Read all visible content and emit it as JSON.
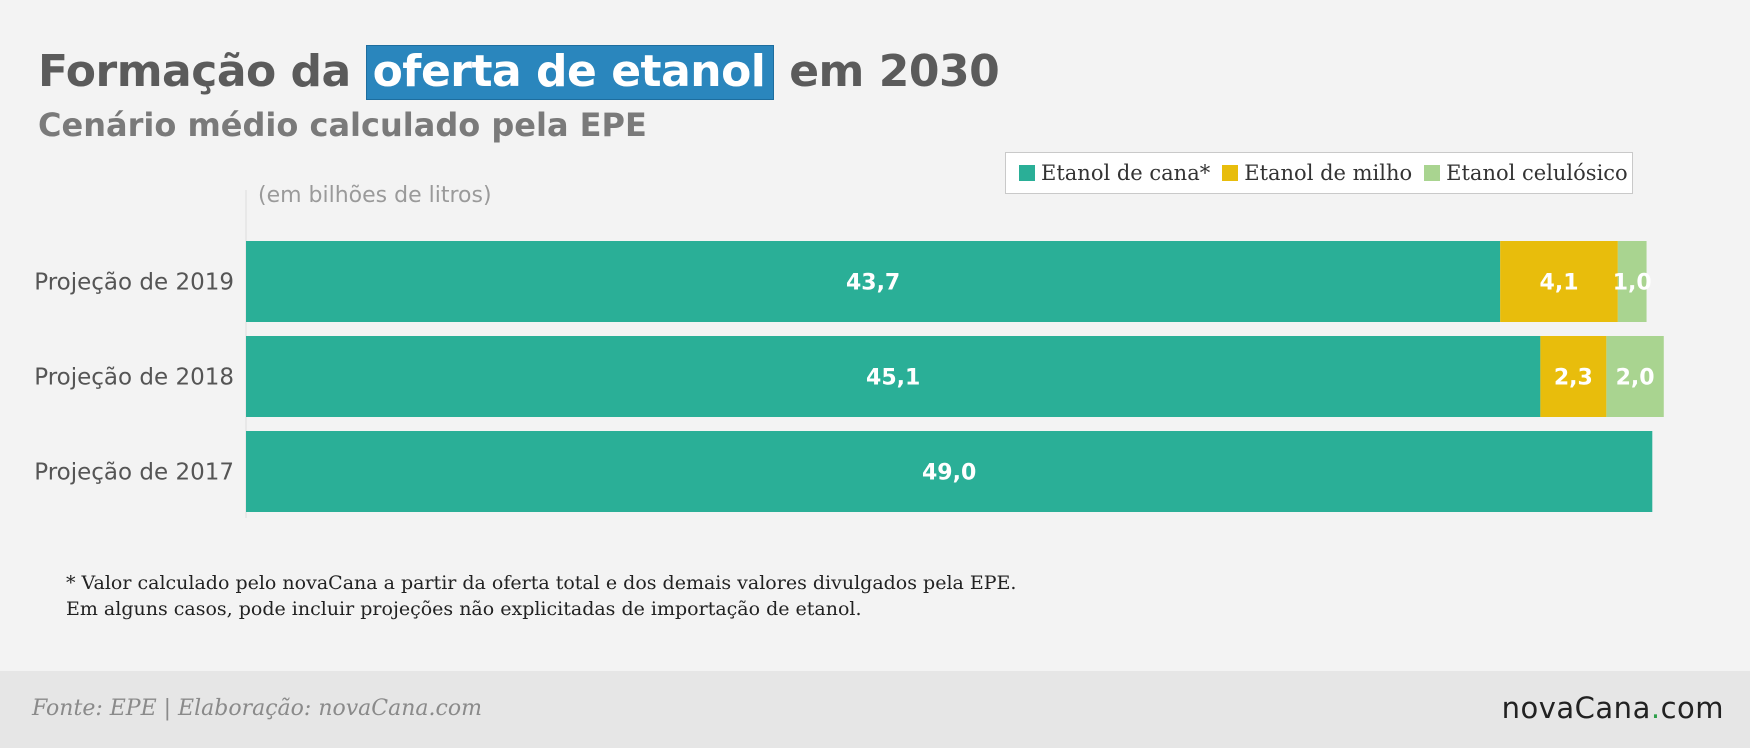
{
  "header": {
    "title_before": "Formação da",
    "title_highlight": "oferta de etanol",
    "title_after": "em 2030",
    "subtitle": "Cenário médio calculado pela EPE"
  },
  "legend": {
    "items": [
      {
        "label": "Etanol de cana*",
        "color": "#2aaf97"
      },
      {
        "label": "Etanol de milho",
        "color": "#e8bd0c"
      },
      {
        "label": "Etanol celulósico",
        "color": "#a9d490"
      }
    ]
  },
  "chart_data": {
    "type": "bar",
    "orientation": "horizontal",
    "stacked": true,
    "unit_note": "(em bilhões de litros)",
    "categories": [
      "Projeção de 2019",
      "Projeção de 2018",
      "Projeção de 2017"
    ],
    "series": [
      {
        "name": "Etanol de cana*",
        "color": "#2aaf97",
        "values": [
          43.7,
          45.1,
          49.0
        ],
        "labels": [
          "43,7",
          "45,1",
          "49,0"
        ]
      },
      {
        "name": "Etanol de milho",
        "color": "#e8bd0c",
        "values": [
          4.1,
          2.3,
          null
        ],
        "labels": [
          "4,1",
          "2,3",
          ""
        ]
      },
      {
        "name": "Etanol celulósico",
        "color": "#a9d490",
        "values": [
          1.0,
          2.0,
          null
        ],
        "labels": [
          "1,0",
          "2,0",
          ""
        ]
      }
    ],
    "xlim": [
      0,
      50
    ],
    "grid": false,
    "legend_position": "top-right"
  },
  "footnote": {
    "line1": "* Valor calculado pelo novaCana a partir da oferta total e dos demais valores divulgados pela EPE.",
    "line2": "Em alguns casos, pode incluir projeções não explicitadas de importação de etanol."
  },
  "footer": {
    "source": "Fonte: EPE | Elaboração: novaCana.com",
    "logo_main": "novaCana",
    "logo_dot": ".",
    "logo_tld": "com"
  }
}
